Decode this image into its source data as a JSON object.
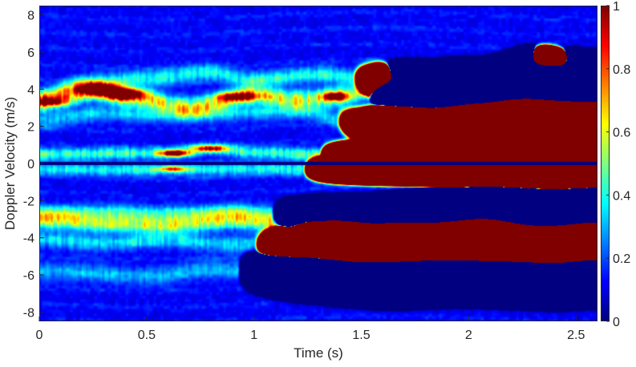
{
  "chart_data": {
    "type": "heatmap",
    "title": "",
    "xlabel": "Time (s)",
    "ylabel": "Doppler Velocity (m/s)",
    "xlim": [
      0,
      2.6
    ],
    "ylim": [
      -8.5,
      8.5
    ],
    "x_ticks": [
      0,
      0.5,
      1,
      1.5,
      2,
      2.5
    ],
    "x_tick_labels": [
      "0",
      "0.5",
      "1",
      "1.5",
      "2",
      "2.5"
    ],
    "y_ticks": [
      -8,
      -6,
      -4,
      -2,
      0,
      2,
      4,
      6,
      8
    ],
    "y_tick_labels": [
      "-8",
      "-6",
      "-4",
      "-2",
      "0",
      "2",
      "4",
      "6",
      "8"
    ],
    "colorbar": {
      "colormap": "jet",
      "clim": [
        0,
        1
      ],
      "ticks": [
        0,
        0.2,
        0.4,
        0.6,
        0.8,
        1
      ],
      "tick_labels": [
        "0",
        "0.2",
        "0.4",
        "0.6",
        "0.8",
        "1"
      ]
    },
    "ridges": [
      {
        "points": [
          [
            0,
            3.3
          ],
          [
            0.25,
            3.9
          ],
          [
            0.45,
            3.5
          ],
          [
            0.7,
            3.0
          ],
          [
            1.0,
            3.7
          ],
          [
            1.2,
            3.4
          ],
          [
            1.4,
            3.6
          ],
          [
            1.6,
            4.2
          ],
          [
            1.85,
            4.0
          ],
          [
            2.05,
            4.0
          ],
          [
            2.3,
            4.6
          ],
          [
            2.6,
            4.3
          ]
        ],
        "intensity": 0.6,
        "width": 0.35
      },
      {
        "points": [
          [
            0,
            3.6
          ],
          [
            0.2,
            4.3
          ],
          [
            0.5,
            4.6
          ],
          [
            0.8,
            4.9
          ],
          [
            1.0,
            4.5
          ],
          [
            1.3,
            4.8
          ],
          [
            1.55,
            4.5
          ],
          [
            1.8,
            3.9
          ],
          [
            2.1,
            4.2
          ],
          [
            2.35,
            5.0
          ],
          [
            2.6,
            4.4
          ]
        ],
        "intensity": 0.35,
        "width": 0.3
      },
      {
        "points": [
          [
            0,
            2.3
          ],
          [
            0.3,
            2.7
          ],
          [
            0.6,
            2.6
          ],
          [
            0.9,
            2.7
          ],
          [
            1.2,
            2.8
          ],
          [
            1.5,
            2.1
          ],
          [
            1.8,
            2.2
          ],
          [
            2.1,
            2.9
          ],
          [
            2.4,
            2.6
          ],
          [
            2.6,
            2.7
          ]
        ],
        "intensity": 0.25,
        "width": 0.3
      },
      {
        "points": [
          [
            0.05,
            0.5
          ],
          [
            0.4,
            0.55
          ],
          [
            0.6,
            0.55
          ],
          [
            0.8,
            0.8
          ],
          [
            1.0,
            0.6
          ],
          [
            1.3,
            0.5
          ],
          [
            1.6,
            0.45
          ],
          [
            2.0,
            0.5
          ],
          [
            2.3,
            0.45
          ],
          [
            2.6,
            0.5
          ]
        ],
        "intensity": 0.4,
        "width": 0.22
      },
      {
        "points": [
          [
            0.05,
            -0.3
          ],
          [
            0.4,
            -0.35
          ],
          [
            0.6,
            -0.35
          ],
          [
            0.9,
            -0.3
          ],
          [
            1.3,
            -0.3
          ],
          [
            1.7,
            -0.25
          ],
          [
            2.1,
            -0.3
          ],
          [
            2.6,
            -0.3
          ]
        ],
        "intensity": 0.35,
        "width": 0.22
      },
      {
        "points": [
          [
            0,
            -3.0
          ],
          [
            0.3,
            -3.2
          ],
          [
            0.6,
            -3.3
          ],
          [
            0.9,
            -3.0
          ],
          [
            1.1,
            -3.2
          ],
          [
            1.35,
            -3.4
          ],
          [
            1.6,
            -3.8
          ],
          [
            1.85,
            -3.9
          ],
          [
            2.05,
            -3.7
          ],
          [
            2.3,
            -4.2
          ],
          [
            2.6,
            -4.0
          ]
        ],
        "intensity": 0.55,
        "width": 0.35
      },
      {
        "points": [
          [
            0,
            -2.7
          ],
          [
            0.3,
            -2.6
          ],
          [
            0.6,
            -2.7
          ],
          [
            0.9,
            -2.6
          ],
          [
            1.2,
            -2.8
          ],
          [
            1.5,
            -2.9
          ],
          [
            1.8,
            -2.7
          ],
          [
            2.1,
            -2.5
          ],
          [
            2.4,
            -2.8
          ],
          [
            2.6,
            -2.6
          ]
        ],
        "intensity": 0.3,
        "width": 0.3
      },
      {
        "points": [
          [
            0,
            -4.1
          ],
          [
            0.3,
            -4.3
          ],
          [
            0.6,
            -4.1
          ],
          [
            0.9,
            -4.4
          ],
          [
            1.2,
            -4.3
          ],
          [
            1.5,
            -4.6
          ],
          [
            1.8,
            -4.5
          ],
          [
            2.1,
            -4.6
          ],
          [
            2.4,
            -4.7
          ],
          [
            2.6,
            -4.5
          ]
        ],
        "intensity": 0.28,
        "width": 0.3
      },
      {
        "points": [
          [
            0.1,
            -5.8
          ],
          [
            0.5,
            -6.1
          ],
          [
            0.8,
            -5.7
          ],
          [
            1.2,
            -6.0
          ],
          [
            1.6,
            -6.2
          ],
          [
            2.0,
            -6.0
          ],
          [
            2.4,
            -6.1
          ],
          [
            2.6,
            -6.0
          ]
        ],
        "intensity": 0.22,
        "width": 0.35
      }
    ],
    "hotspots": [
      {
        "t": 0.28,
        "v": 4.0,
        "peak": 0.85,
        "st": 0.07,
        "sv": 0.22
      },
      {
        "t": 0.4,
        "v": 3.75,
        "peak": 0.95,
        "st": 0.06,
        "sv": 0.2
      },
      {
        "t": 0.63,
        "v": 0.55,
        "peak": 0.85,
        "st": 0.045,
        "sv": 0.12
      },
      {
        "t": 0.8,
        "v": 0.8,
        "peak": 0.6,
        "st": 0.05,
        "sv": 0.12
      },
      {
        "t": 1.38,
        "v": 3.6,
        "peak": 0.7,
        "st": 0.04,
        "sv": 0.15
      },
      {
        "t": 1.38,
        "v": -3.4,
        "peak": 0.65,
        "st": 0.04,
        "sv": 0.15
      },
      {
        "t": 0.05,
        "v": 3.3,
        "peak": 0.55,
        "st": 0.06,
        "sv": 0.15
      },
      {
        "t": 1.85,
        "v": 4.0,
        "peak": 0.55,
        "st": 0.06,
        "sv": 0.15
      },
      {
        "t": 0.92,
        "v": 3.6,
        "peak": 0.55,
        "st": 0.07,
        "sv": 0.18
      },
      {
        "t": 2.0,
        "v": -3.7,
        "peak": 0.5,
        "st": 0.05,
        "sv": 0.15
      },
      {
        "t": 0.62,
        "v": -0.3,
        "peak": 0.5,
        "st": 0.05,
        "sv": 0.1
      }
    ],
    "zero_line": {
      "v": 0,
      "value": 0
    }
  }
}
